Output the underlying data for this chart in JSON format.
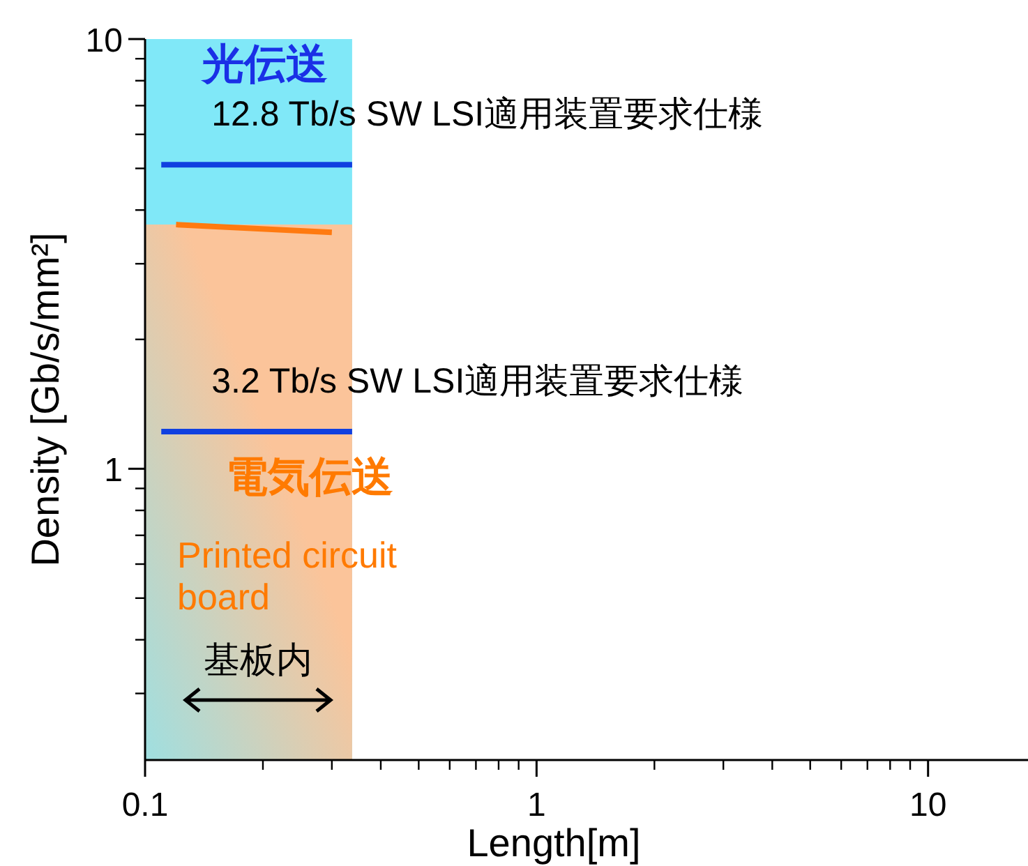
{
  "chart_data": {
    "type": "line",
    "xlabel": "Length[m]",
    "ylabel": "Density [Gb/s/mm²]",
    "log": "xy",
    "xlim": [
      0.1,
      18
    ],
    "ylim": [
      0.21,
      10
    ],
    "xticks": [
      0.1,
      1,
      10
    ],
    "yticks": [
      1,
      10
    ],
    "series": [
      {
        "type": "area",
        "color": "#80e8f8",
        "x": [
          0.1,
          0.338
        ],
        "values": [
          10,
          10
        ]
      },
      {
        "type": "area",
        "color": "#fbc49a",
        "x": [
          0.1,
          0.338
        ],
        "values": [
          3.7,
          3.7
        ]
      },
      {
        "name": "12.8 Tb/s SW LSI適用装置要求仕様",
        "color": "#1040e0",
        "x": [
          0.11,
          0.338
        ],
        "values": [
          5.1,
          5.1
        ]
      },
      {
        "color": "#ff7a10",
        "x": [
          0.12,
          0.3
        ],
        "values": [
          3.7,
          3.55
        ]
      },
      {
        "name": "3.2 Tb/s SW LSI適用装置要求仕様",
        "color": "#1040e0",
        "x": [
          0.11,
          0.338
        ],
        "values": [
          1.22,
          1.22
        ]
      }
    ],
    "annotations": [
      "光伝送",
      "電気伝送",
      "Printed circuit board",
      "基板内"
    ]
  }
}
